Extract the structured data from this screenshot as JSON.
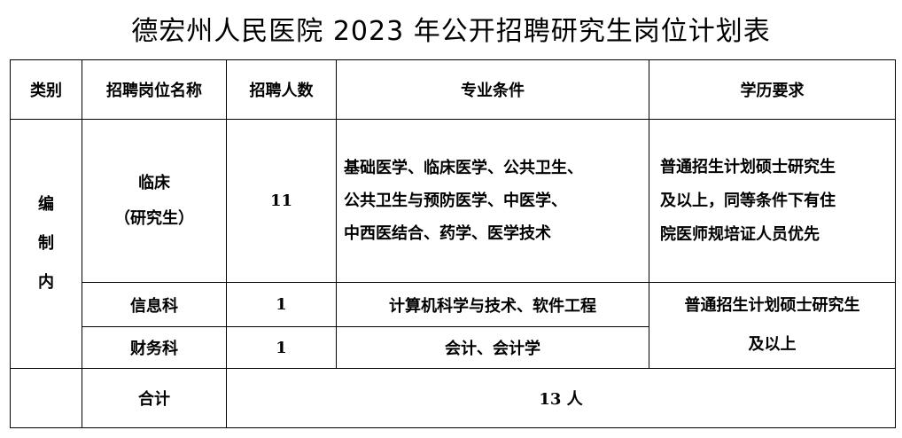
{
  "title": "德宏州人民医院 2023 年公开招聘研究生岗位计划表",
  "table": {
    "headers": [
      "类别",
      "招聘岗位名称",
      "招聘人数",
      "专业条件",
      "学历要求"
    ],
    "category": [
      "编",
      "制",
      "内"
    ],
    "rows": [
      {
        "position": [
          "临床",
          "（研究生）"
        ],
        "count": "11",
        "major": [
          "基础医学、临床医学、公共卫生、",
          "公共卫生与预防医学、中医学、",
          "中西医结合、药学、医学技术"
        ],
        "education": [
          "普通招生计划硕士研究生",
          "及以上，同等条件下有住",
          "院医师规培证人员优先"
        ]
      },
      {
        "position": [
          "信息科"
        ],
        "count": "1",
        "major": [
          "计算机科学与技术、软件工程"
        ]
      },
      {
        "position": [
          "财务科"
        ],
        "count": "1",
        "major": [
          "会计、会计学"
        ]
      }
    ],
    "shared_education": [
      "普通招生计划硕士研究生",
      "及以上"
    ],
    "total_label": "合计",
    "total_value": "13 人"
  }
}
